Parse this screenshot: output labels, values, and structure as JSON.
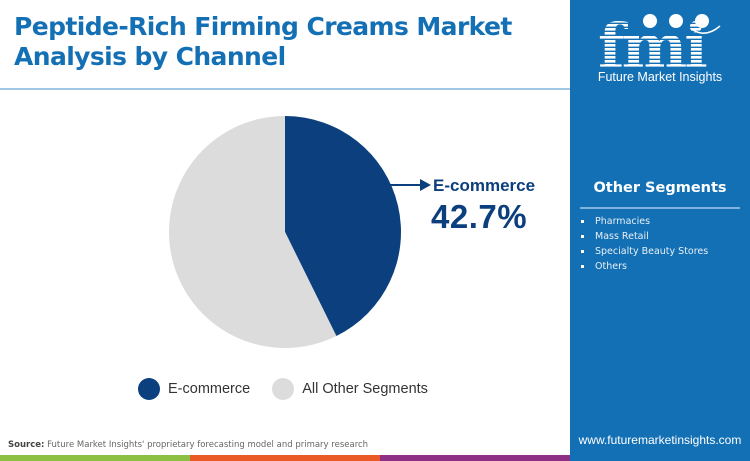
{
  "header": {
    "title": "Peptide-Rich Firming Creams Market Analysis by Channel"
  },
  "brand": {
    "logo_text": "fmi",
    "name": "Future Market Insights",
    "website": "www.futuremarketinsights.com",
    "colors": {
      "primary": "#1470b4",
      "title": "#1470b4",
      "dark_navy": "#0c3f7d"
    }
  },
  "callout": {
    "label": "E-commerce",
    "value": "42.7%",
    "arrow_icon": "arrow-right-icon"
  },
  "sidebar": {
    "other_segments_title": "Other Segments",
    "items": [
      {
        "label": "Pharmacies"
      },
      {
        "label": "Mass Retail"
      },
      {
        "label": "Specialty Beauty Stores"
      },
      {
        "label": "Others"
      }
    ]
  },
  "legend": {
    "items": [
      {
        "label": "E-commerce",
        "color": "#0c3f7d"
      },
      {
        "label": "All Other Segments",
        "color": "#dcdcdc"
      }
    ]
  },
  "footer": {
    "source_label": "Source:",
    "source_text": "Future Market Insights' proprietary forecasting model and primary research",
    "bar_colors": [
      "#8bc043",
      "#e95a26",
      "#8e2f86"
    ]
  },
  "chart_data": {
    "type": "pie",
    "title": "Peptide-Rich Firming Creams Market Analysis by Channel",
    "categories": [
      "E-commerce",
      "All Other Segments"
    ],
    "values": [
      42.7,
      57.3
    ],
    "colors": [
      "#0c3f7d",
      "#dcdcdc"
    ],
    "unit": "%",
    "start_angle": "12 o'clock, clockwise",
    "annotations": [
      {
        "label": "E-commerce",
        "value": "42.7%"
      }
    ],
    "legend_position": "bottom",
    "other_segments_breakdown": [
      "Pharmacies",
      "Mass Retail",
      "Specialty Beauty Stores",
      "Others"
    ]
  }
}
